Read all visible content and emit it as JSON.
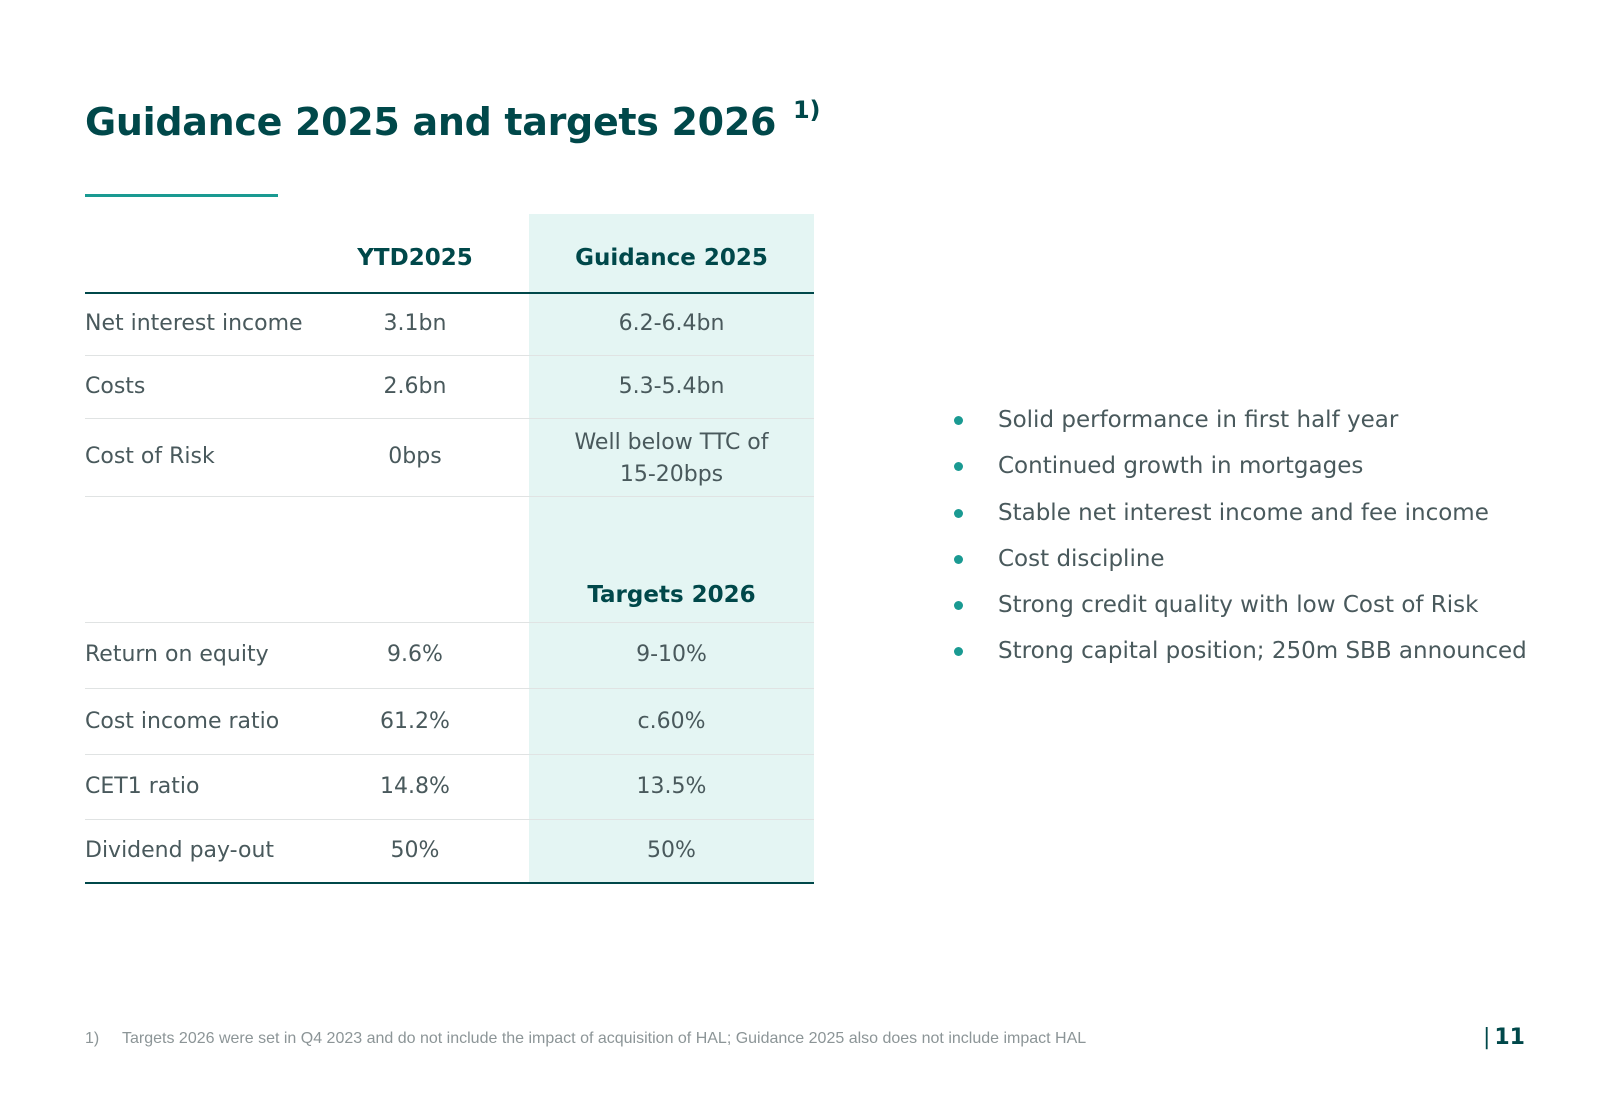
{
  "title": "Guidance 2025 and targets 2026",
  "title_footnote_marker": "1)",
  "table": {
    "col_ytd": "YTD2025",
    "col_guidance": "Guidance 2025",
    "col_targets": "Targets 2026",
    "guidance_rows": [
      {
        "label": "Net interest income",
        "ytd": "3.1bn",
        "value": "6.2-6.4bn"
      },
      {
        "label": "Costs",
        "ytd": "2.6bn",
        "value": "5.3-5.4bn"
      },
      {
        "label": "Cost of Risk",
        "ytd": "0bps",
        "value_line1": "Well below TTC of",
        "value_line2": "15-20bps"
      }
    ],
    "target_rows": [
      {
        "label": "Return on equity",
        "ytd": "9.6%",
        "value": "9-10%"
      },
      {
        "label": "Cost income ratio",
        "ytd": "61.2%",
        "value": "c.60%"
      },
      {
        "label": "CET1 ratio",
        "ytd": "14.8%",
        "value": "13.5%"
      },
      {
        "label": "Dividend pay-out",
        "ytd": "50%",
        "value": "50%"
      }
    ]
  },
  "bullets": [
    "Solid performance in first half year",
    "Continued growth in mortgages",
    "Stable net interest income and fee income",
    "Cost discipline",
    "Strong credit quality with low Cost of Risk",
    "Strong capital position; 250m SBB announced"
  ],
  "footnote": {
    "marker": "1)",
    "text": "Targets 2026 were set in Q4 2023 and do not include the impact of acquisition of HAL; Guidance 2025 also does not include impact HAL"
  },
  "page": {
    "separator": "|",
    "number": "11"
  },
  "colors": {
    "primary": "#00484a",
    "accent": "#1a9a92",
    "shade": "#e4f5f3",
    "text": "#49595c"
  }
}
